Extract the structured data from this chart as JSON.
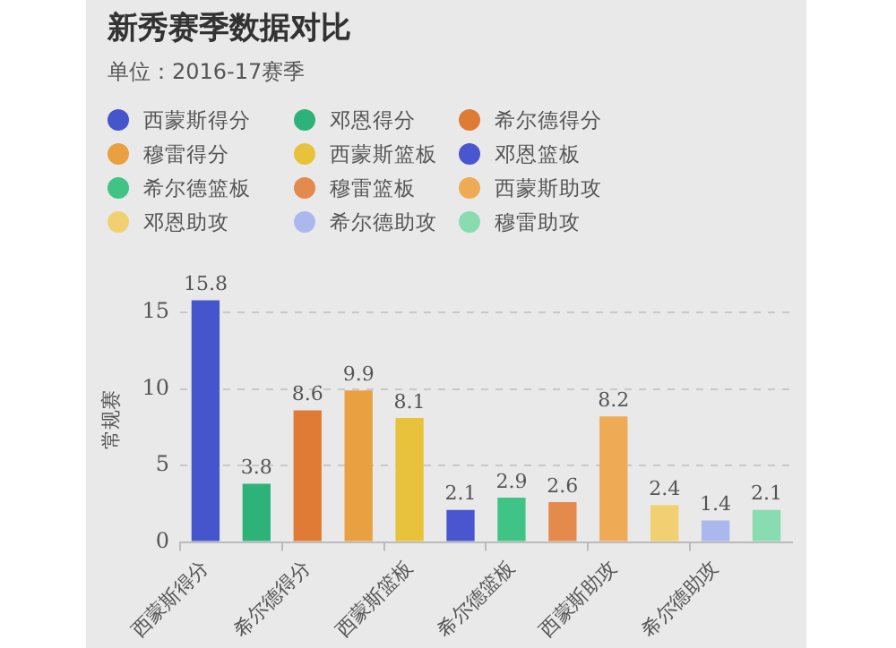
{
  "chart_data": {
    "type": "bar",
    "title": "新秀赛季数据对比",
    "subtitle": "单位：2016-17赛季",
    "ylabel": "常规赛",
    "categories": [
      "西蒙斯得分",
      null,
      "希尔德得分",
      null,
      "西蒙斯篮板",
      null,
      "希尔德篮板",
      null,
      "西蒙斯助攻",
      null,
      "希尔德助攻",
      null
    ],
    "series": [
      {
        "name": "西蒙斯得分",
        "color": "#4555cc",
        "values": [
          15.8,
          null,
          null,
          null,
          null,
          null,
          null,
          null,
          null,
          null,
          null,
          null
        ]
      },
      {
        "name": "邓恩得分",
        "color": "#2db37a",
        "values": [
          null,
          3.8,
          null,
          null,
          null,
          null,
          null,
          null,
          null,
          null,
          null,
          null
        ]
      },
      {
        "name": "希尔德得分",
        "color": "#e07b35",
        "values": [
          null,
          null,
          8.6,
          null,
          null,
          null,
          null,
          null,
          null,
          null,
          null,
          null
        ]
      },
      {
        "name": "穆雷得分",
        "color": "#e8a040",
        "values": [
          null,
          null,
          null,
          9.9,
          null,
          null,
          null,
          null,
          null,
          null,
          null,
          null
        ]
      },
      {
        "name": "西蒙斯篮板",
        "color": "#e8c23a",
        "values": [
          null,
          null,
          null,
          null,
          8.1,
          null,
          null,
          null,
          null,
          null,
          null,
          null
        ]
      },
      {
        "name": "邓恩篮板",
        "color": "#4a55d0",
        "values": [
          null,
          null,
          null,
          null,
          null,
          2.1,
          null,
          null,
          null,
          null,
          null,
          null
        ]
      },
      {
        "name": "希尔德篮板",
        "color": "#3fc485",
        "values": [
          null,
          null,
          null,
          null,
          null,
          null,
          2.9,
          null,
          null,
          null,
          null,
          null
        ]
      },
      {
        "name": "穆雷篮板",
        "color": "#e48a4c",
        "values": [
          null,
          null,
          null,
          null,
          null,
          null,
          null,
          2.6,
          null,
          null,
          null,
          null
        ]
      },
      {
        "name": "西蒙斯助攻",
        "color": "#eeaa55",
        "values": [
          null,
          null,
          null,
          null,
          null,
          null,
          null,
          null,
          8.2,
          null,
          null,
          null
        ]
      },
      {
        "name": "邓恩助攻",
        "color": "#f0d070",
        "values": [
          null,
          null,
          null,
          null,
          null,
          null,
          null,
          null,
          null,
          2.4,
          null,
          null
        ]
      },
      {
        "name": "希尔德助攻",
        "color": "#aab8ee",
        "values": [
          null,
          null,
          null,
          null,
          null,
          null,
          null,
          null,
          null,
          null,
          1.4,
          null
        ]
      },
      {
        "name": "穆雷助攻",
        "color": "#88dcb0",
        "values": [
          null,
          null,
          null,
          null,
          null,
          null,
          null,
          null,
          null,
          null,
          null,
          2.1
        ]
      }
    ],
    "stacked": true,
    "ylim": [
      0,
      16
    ],
    "yticks": [
      0,
      5,
      10,
      15
    ],
    "grid": "y",
    "legend": "top",
    "data_labels": true
  }
}
